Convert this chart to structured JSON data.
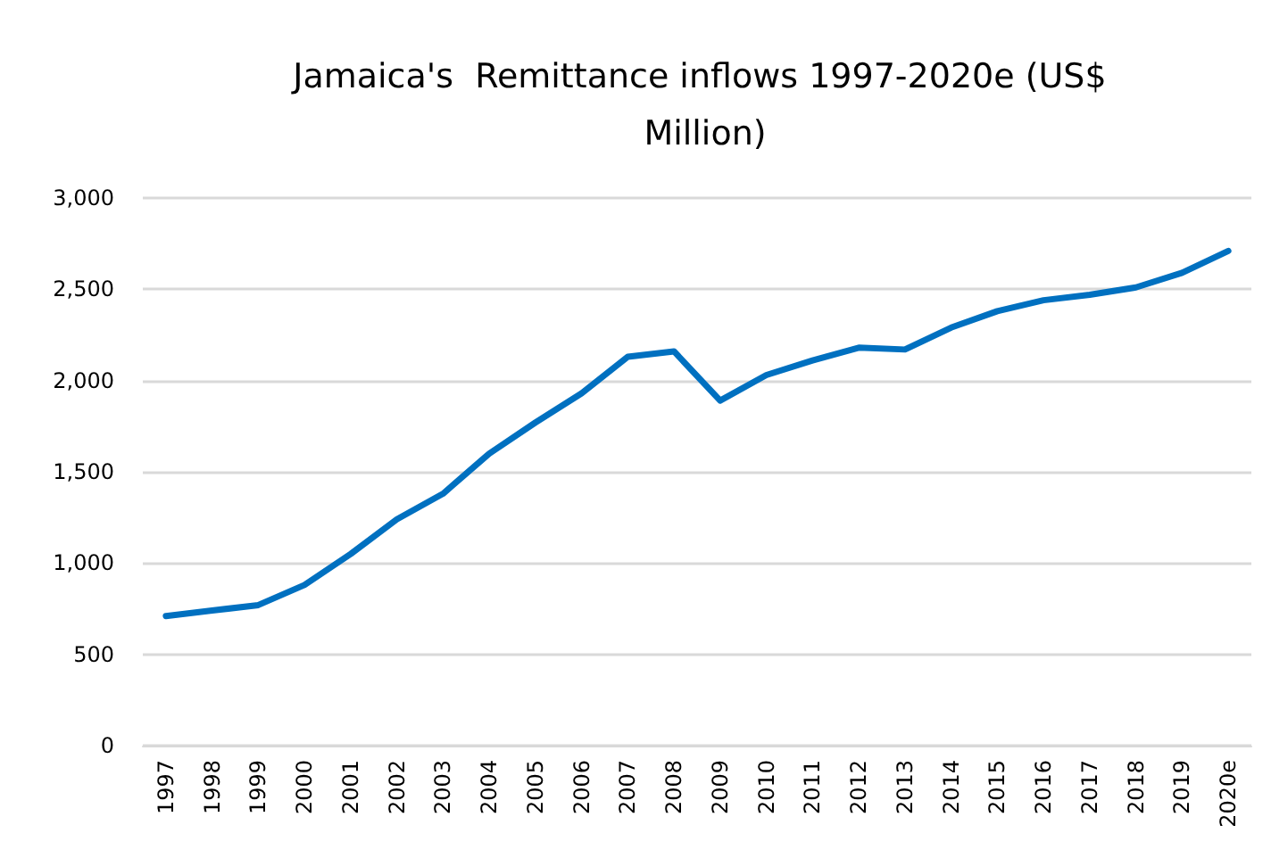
{
  "chart_data": {
    "type": "line",
    "title": "Jamaica's  Remittance inflows 1997-2020e (US$ Million)",
    "categories": [
      "1997",
      "1998",
      "1999",
      "2000",
      "2001",
      "2002",
      "2003",
      "2004",
      "2005",
      "2006",
      "2007",
      "2008",
      "2009",
      "2010",
      "2011",
      "2012",
      "2013",
      "2014",
      "2015",
      "2016",
      "2017",
      "2018",
      "2019",
      "2020e"
    ],
    "series": [
      {
        "color": "#0070c0",
        "values": [
          710,
          740,
          770,
          880,
          1050,
          1240,
          1380,
          1600,
          1770,
          1930,
          2130,
          2160,
          1890,
          2030,
          2110,
          2180,
          2170,
          2290,
          2380,
          2440,
          2470,
          2510,
          2590,
          2710
        ]
      }
    ],
    "ylim": [
      0,
      3000
    ],
    "yticks": [
      {
        "value": 0,
        "label": "0"
      },
      {
        "value": 500,
        "label": "500"
      },
      {
        "value": 1000,
        "label": "1,000"
      },
      {
        "value": 1500,
        "label": "1,500"
      },
      {
        "value": 2000,
        "label": "2,000"
      },
      {
        "value": 2500,
        "label": "2,500"
      },
      {
        "value": 3000,
        "label": "3,000"
      }
    ],
    "grid": "y",
    "marker": "none",
    "line_style": "solid"
  }
}
